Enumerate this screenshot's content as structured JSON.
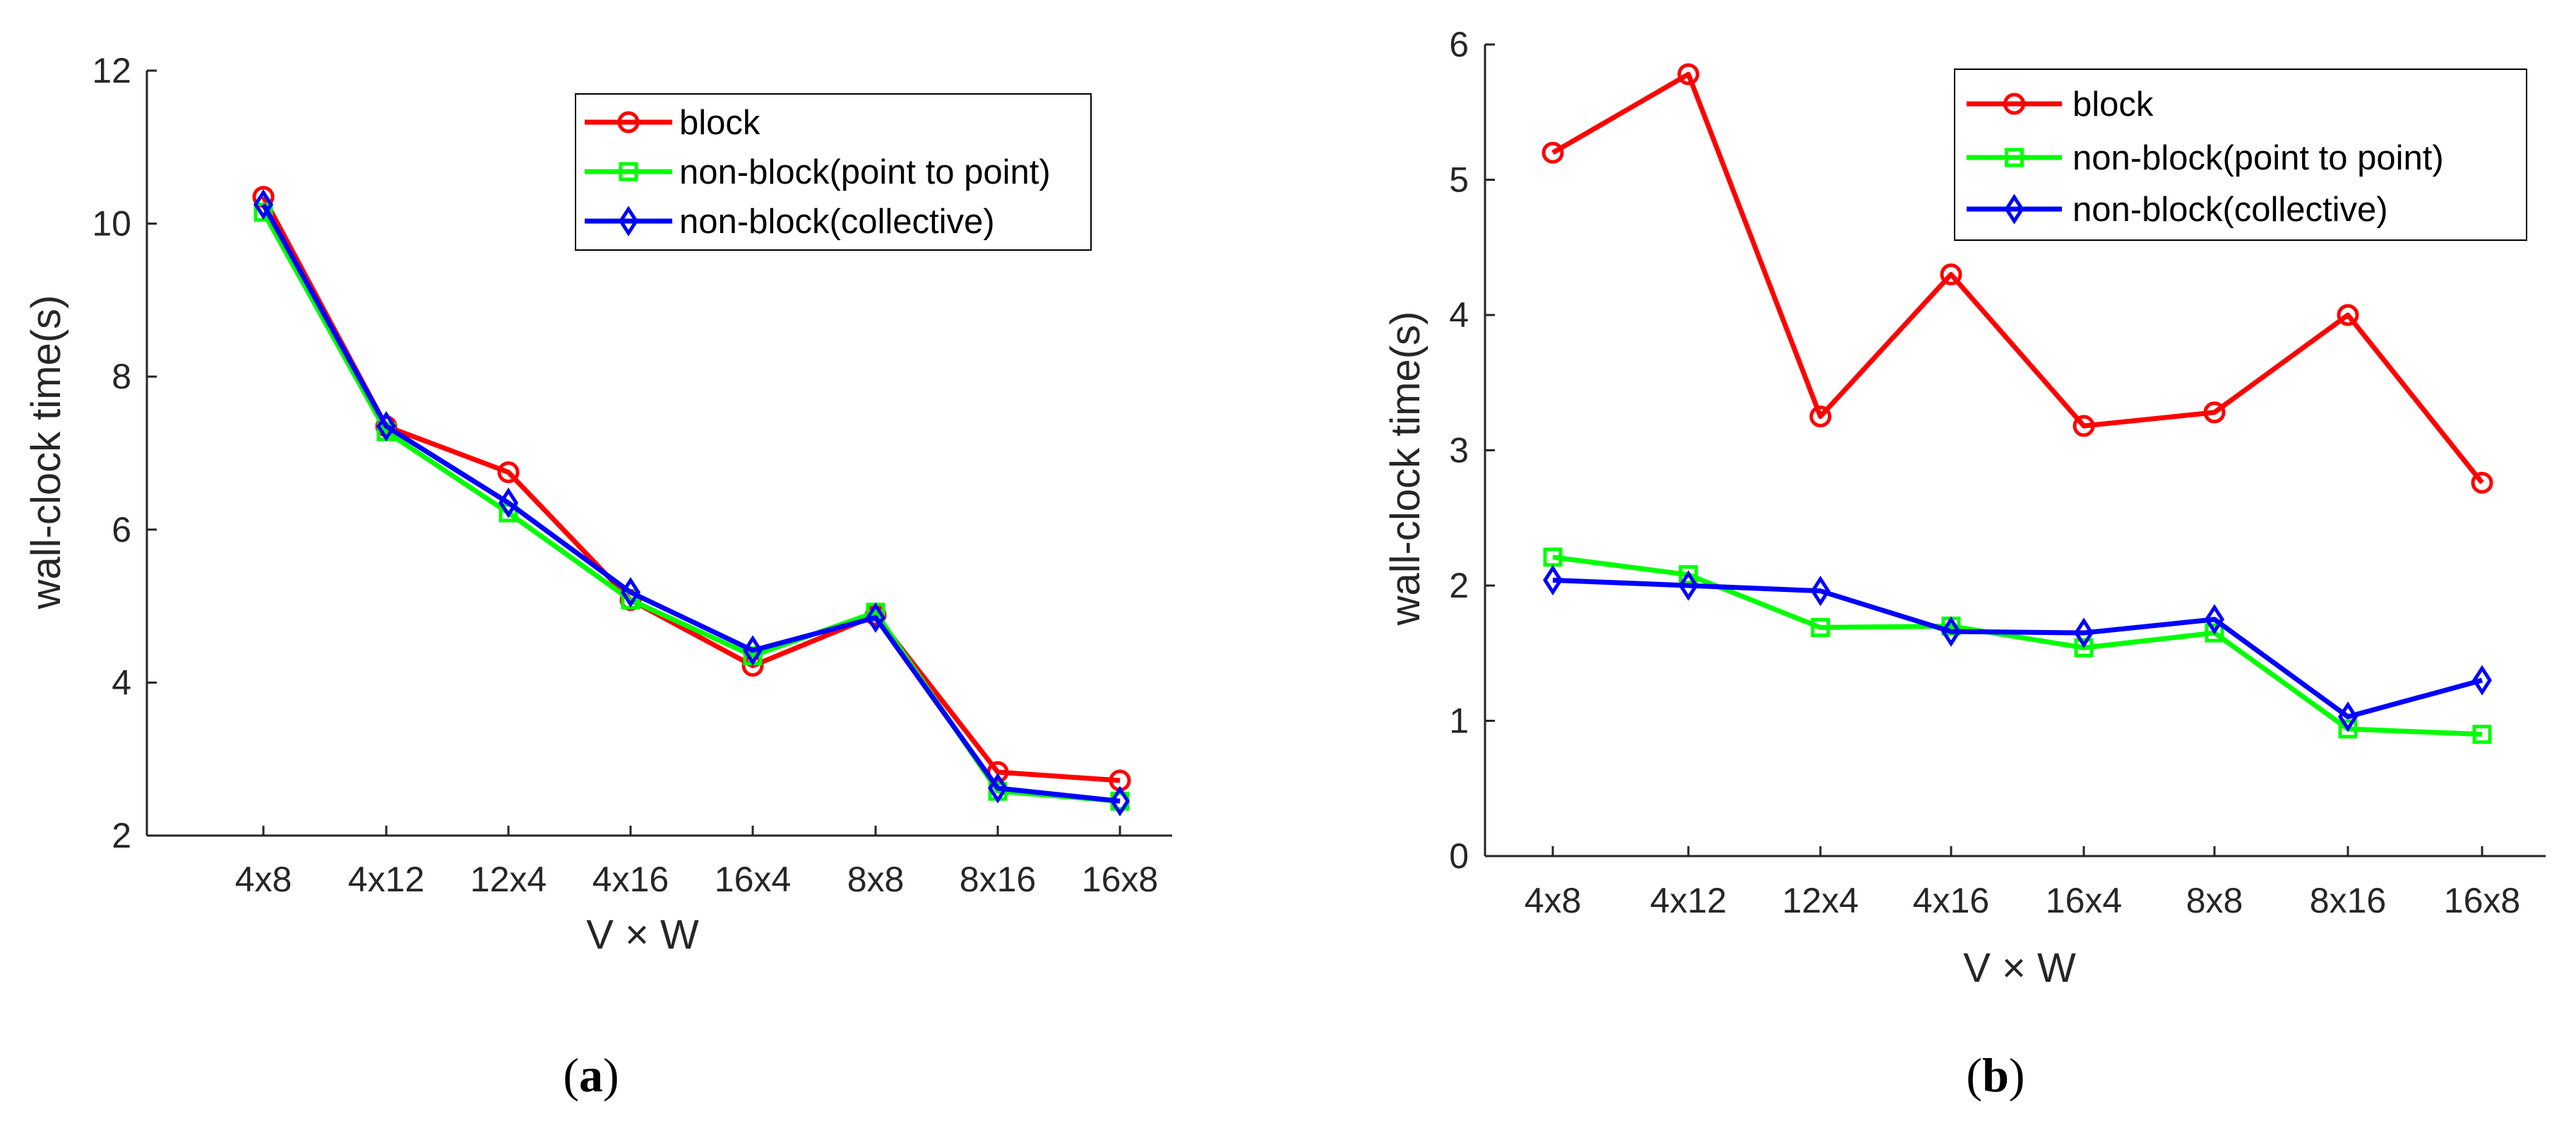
{
  "series_style": {
    "block": {
      "color": "#ff0000",
      "marker": "circle"
    },
    "p2p": {
      "color": "#00ff00",
      "marker": "square"
    },
    "collective": {
      "color": "#0000ff",
      "marker": "diamond"
    }
  },
  "chart_data": [
    {
      "type": "line",
      "panel": "a",
      "caption": {
        "open": "(",
        "letter": "a",
        "close": ")"
      },
      "categories": [
        "4x8",
        "4x12",
        "12x4",
        "4x16",
        "16x4",
        "8x8",
        "8x16",
        "16x8"
      ],
      "xlabel": "V × W",
      "ylabel": "wall-clock time(s)",
      "ylim": [
        2,
        12
      ],
      "yticks": [
        2,
        4,
        6,
        8,
        10,
        12
      ],
      "grid": false,
      "legend_position": "top-right",
      "series": [
        {
          "key": "block",
          "name": "block",
          "values": [
            10.35,
            7.35,
            6.75,
            5.08,
            4.22,
            4.88,
            2.83,
            2.72
          ]
        },
        {
          "key": "p2p",
          "name": "non-block(point to point)",
          "values": [
            10.15,
            7.28,
            6.22,
            5.08,
            4.35,
            4.92,
            2.58,
            2.45
          ]
        },
        {
          "key": "collective",
          "name": "non-block(collective)",
          "values": [
            10.25,
            7.35,
            6.35,
            5.18,
            4.42,
            4.85,
            2.62,
            2.45
          ]
        }
      ]
    },
    {
      "type": "line",
      "panel": "b",
      "caption": {
        "open": "(",
        "letter": "b",
        "close": ")"
      },
      "categories": [
        "4x8",
        "4x12",
        "12x4",
        "4x16",
        "16x4",
        "8x8",
        "8x16",
        "16x8"
      ],
      "xlabel": "V × W",
      "ylabel": "wall-clock time(s)",
      "ylim": [
        0,
        6
      ],
      "yticks": [
        0,
        1,
        2,
        3,
        4,
        5,
        6
      ],
      "grid": false,
      "legend_position": "top-right",
      "series": [
        {
          "key": "block",
          "name": "block",
          "values": [
            5.2,
            5.78,
            3.25,
            4.3,
            3.18,
            3.28,
            4.0,
            2.76
          ]
        },
        {
          "key": "p2p",
          "name": "non-block(point to point)",
          "values": [
            2.21,
            2.08,
            1.69,
            1.7,
            1.54,
            1.65,
            0.94,
            0.9
          ]
        },
        {
          "key": "collective",
          "name": "non-block(collective)",
          "values": [
            2.04,
            2.0,
            1.96,
            1.66,
            1.65,
            1.75,
            1.03,
            1.3
          ]
        }
      ]
    }
  ]
}
